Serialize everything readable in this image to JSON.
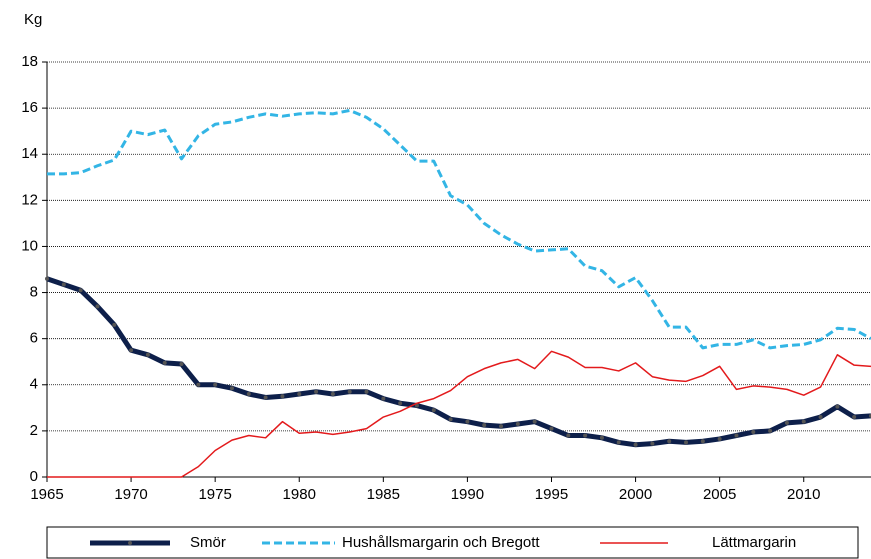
{
  "chart_data": {
    "type": "line",
    "y_label": "Kg",
    "x": [
      1965,
      1966,
      1967,
      1968,
      1969,
      1970,
      1971,
      1972,
      1973,
      1974,
      1975,
      1976,
      1977,
      1978,
      1979,
      1980,
      1981,
      1982,
      1983,
      1984,
      1985,
      1986,
      1987,
      1988,
      1989,
      1990,
      1991,
      1992,
      1993,
      1994,
      1995,
      1996,
      1997,
      1998,
      1999,
      2000,
      2001,
      2002,
      2003,
      2004,
      2005,
      2006,
      2007,
      2008,
      2009,
      2010,
      2011,
      2012,
      2013,
      2014
    ],
    "series": [
      {
        "name": "Smör",
        "color": "#0d1f4a",
        "line_style": "solid",
        "width": 5,
        "marker": true,
        "values": [
          8.6,
          8.35,
          8.1,
          7.4,
          6.6,
          5.5,
          5.3,
          4.95,
          4.9,
          4.0,
          4.0,
          3.85,
          3.6,
          3.45,
          3.5,
          3.6,
          3.7,
          3.6,
          3.7,
          3.7,
          3.4,
          3.2,
          3.1,
          2.9,
          2.5,
          2.4,
          2.25,
          2.2,
          2.3,
          2.4,
          2.1,
          1.8,
          1.8,
          1.7,
          1.5,
          1.4,
          1.45,
          1.55,
          1.5,
          1.55,
          1.65,
          1.8,
          1.95,
          2.0,
          2.35,
          2.4,
          2.6,
          3.05,
          2.6,
          2.65
        ]
      },
      {
        "name": "Hushållsmargarin och Bregott",
        "color": "#33b5e5",
        "line_style": "dashed",
        "width": 3,
        "marker": false,
        "values": [
          13.15,
          13.15,
          13.2,
          13.5,
          13.75,
          15.0,
          14.85,
          15.05,
          13.8,
          14.8,
          15.3,
          15.4,
          15.6,
          15.75,
          15.65,
          15.75,
          15.8,
          15.75,
          15.9,
          15.6,
          15.1,
          14.4,
          13.7,
          13.7,
          12.2,
          11.8,
          11.0,
          10.5,
          10.1,
          9.8,
          9.85,
          9.9,
          9.15,
          8.95,
          8.25,
          8.65,
          7.65,
          6.5,
          6.5,
          5.6,
          5.75,
          5.75,
          5.95,
          5.6,
          5.7,
          5.75,
          5.95,
          6.45,
          6.4,
          6.0
        ]
      },
      {
        "name": "Lättmargarin",
        "color": "#e31a1c",
        "line_style": "solid",
        "width": 1.5,
        "marker": false,
        "values": [
          0,
          0,
          0,
          0,
          0,
          0,
          0,
          0,
          0,
          0.45,
          1.15,
          1.6,
          1.8,
          1.7,
          2.4,
          1.9,
          1.95,
          1.85,
          1.95,
          2.1,
          2.6,
          2.85,
          3.2,
          3.4,
          3.75,
          4.35,
          4.7,
          4.95,
          5.1,
          4.7,
          5.45,
          5.2,
          4.75,
          4.75,
          4.6,
          4.95,
          4.35,
          4.2,
          4.15,
          4.4,
          4.8,
          3.8,
          3.95,
          3.9,
          3.8,
          3.55,
          3.9,
          5.3,
          4.85,
          4.8
        ]
      }
    ],
    "xlim": [
      1965,
      2014
    ],
    "xticks": [
      1965,
      1970,
      1975,
      1980,
      1985,
      1990,
      1995,
      2000,
      2005,
      2010
    ],
    "ylim": [
      0,
      18
    ],
    "yticks": [
      0,
      2,
      4,
      6,
      8,
      10,
      12,
      14,
      16,
      18
    ],
    "grid": true,
    "legend": "bottom"
  }
}
